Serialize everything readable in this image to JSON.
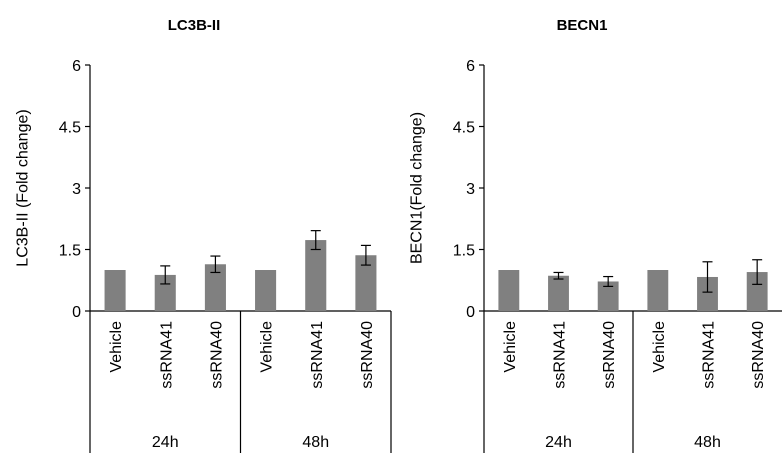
{
  "chart_data": [
    {
      "type": "bar",
      "title": "LC3B-II",
      "ylabel": "LC3B-II (Fold change)",
      "ylim": [
        0,
        6
      ],
      "yticks": [
        "0",
        "1.5",
        "3",
        "4.5",
        "6"
      ],
      "categories": [
        "Vehicle",
        "ssRNA41",
        "ssRNA40",
        "Vehicle",
        "ssRNA41",
        "ssRNA40"
      ],
      "groups": [
        {
          "label": "24h",
          "count": 3
        },
        {
          "label": "48h",
          "count": 3
        }
      ],
      "values": [
        1.0,
        0.88,
        1.14,
        1.0,
        1.73,
        1.36
      ],
      "errors": [
        0.0,
        0.22,
        0.2,
        0.0,
        0.23,
        0.24
      ],
      "bar_color": "#808080"
    },
    {
      "type": "bar",
      "title": "BECN1",
      "ylabel": "BECN1(Fold change)",
      "ylim": [
        0,
        6
      ],
      "yticks": [
        "0",
        "1.5",
        "3",
        "4.5",
        "6"
      ],
      "categories": [
        "Vehicle",
        "ssRNA41",
        "ssRNA40",
        "Vehicle",
        "ssRNA41",
        "ssRNA40"
      ],
      "groups": [
        {
          "label": "24h",
          "count": 3
        },
        {
          "label": "48h",
          "count": 3
        }
      ],
      "values": [
        1.0,
        0.86,
        0.72,
        1.0,
        0.83,
        0.95
      ],
      "errors": [
        0.0,
        0.08,
        0.12,
        0.0,
        0.37,
        0.3
      ],
      "bar_color": "#808080"
    }
  ]
}
